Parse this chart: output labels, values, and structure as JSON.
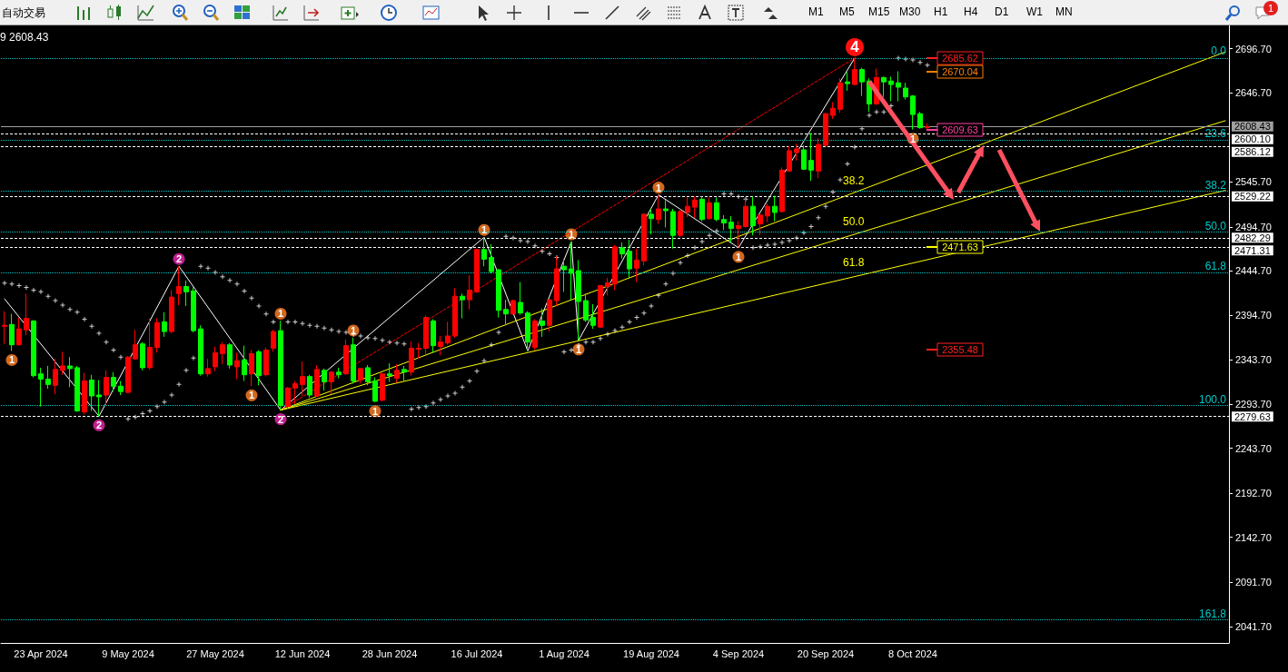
{
  "chart_data": {
    "type": "candlestick",
    "categories": [
      null,
      null,
      null,
      null,
      null,
      "23 Apr 2024",
      null,
      null,
      null,
      null,
      null,
      null,
      null,
      null,
      null,
      null,
      null,
      "9 May 2024",
      null,
      null,
      null,
      null,
      null,
      null,
      null,
      null,
      null,
      null,
      null,
      "27 May 2024",
      null,
      null,
      null,
      null,
      null,
      null,
      null,
      null,
      null,
      null,
      null,
      "12 Jun 2024",
      null,
      null,
      null,
      null,
      null,
      null,
      null,
      null,
      null,
      null,
      null,
      "28 Jun 2024",
      null,
      null,
      null,
      null,
      null,
      null,
      null,
      null,
      null,
      null,
      null,
      "16 Jul 2024",
      null,
      null,
      null,
      null,
      null,
      null,
      null,
      null,
      null,
      null,
      null,
      "1 Aug 2024",
      null,
      null,
      null,
      null,
      null,
      null,
      null,
      null,
      null,
      null,
      null,
      "19 Aug 2024",
      null,
      null,
      null,
      null,
      null,
      null,
      null,
      null,
      null,
      null,
      null,
      "4 Sep 2024",
      null,
      null,
      null,
      null,
      null,
      null,
      null,
      null,
      null,
      null,
      null,
      "20 Sep 2024",
      null,
      null,
      null,
      null,
      null,
      null,
      null,
      null,
      null,
      null,
      null,
      "8 Oct 2024",
      null,
      null,
      null,
      null,
      null,
      null,
      null,
      null,
      null,
      null,
      null,
      null,
      null,
      null,
      null,
      null,
      null,
      null,
      null,
      null,
      null,
      null,
      null,
      null,
      null,
      null,
      null,
      null,
      null,
      null,
      null,
      null,
      null,
      null,
      null,
      null,
      null,
      null,
      null,
      null,
      null,
      null,
      null
    ],
    "ohlc": [
      [
        2382,
        2399,
        2362,
        2383
      ],
      [
        2384,
        2396,
        2354,
        2361
      ],
      [
        2361,
        2392,
        2360,
        2379
      ],
      [
        2378,
        2419,
        2372,
        2391
      ],
      [
        2388,
        2389,
        2324,
        2326
      ],
      [
        2328,
        2335,
        2291,
        2322
      ],
      [
        2322,
        2337,
        2311,
        2316
      ],
      [
        2315,
        2345,
        2305,
        2333
      ],
      [
        2332,
        2353,
        2327,
        2337
      ],
      [
        2337,
        2347,
        2313,
        2334
      ],
      [
        2335,
        2337,
        2285,
        2286
      ],
      [
        2285,
        2329,
        2282,
        2320
      ],
      [
        2321,
        2327,
        2286,
        2303
      ],
      [
        2304,
        2321,
        2280,
        2302
      ],
      [
        2304,
        2332,
        2292,
        2324
      ],
      [
        2324,
        2330,
        2308,
        2314
      ],
      [
        2314,
        2320,
        2304,
        2308
      ],
      [
        2307,
        2348,
        2306,
        2347
      ],
      [
        2345,
        2378,
        2344,
        2361
      ],
      [
        2362,
        2364,
        2332,
        2335
      ],
      [
        2335,
        2391,
        2333,
        2358
      ],
      [
        2358,
        2391,
        2352,
        2386
      ],
      [
        2387,
        2398,
        2370,
        2376
      ],
      [
        2376,
        2423,
        2374,
        2415
      ],
      [
        2419,
        2450,
        2406,
        2427
      ],
      [
        2427,
        2434,
        2405,
        2421
      ],
      [
        2422,
        2426,
        2375,
        2377
      ],
      [
        2379,
        2383,
        2326,
        2328
      ],
      [
        2328,
        2345,
        2325,
        2334
      ],
      [
        2336,
        2359,
        2331,
        2352
      ],
      [
        2351,
        2364,
        2339,
        2361
      ],
      [
        2361,
        2363,
        2334,
        2338
      ],
      [
        2336,
        2352,
        2322,
        2343
      ],
      [
        2344,
        2360,
        2320,
        2327
      ],
      [
        2328,
        2355,
        2314,
        2351
      ],
      [
        2353,
        2355,
        2315,
        2326
      ],
      [
        2327,
        2358,
        2325,
        2355
      ],
      [
        2357,
        2378,
        2353,
        2376
      ],
      [
        2377,
        2388,
        2287,
        2292
      ],
      [
        2291,
        2313,
        2289,
        2312
      ],
      [
        2312,
        2320,
        2294,
        2317
      ],
      [
        2316,
        2342,
        2303,
        2325
      ],
      [
        2325,
        2327,
        2301,
        2304
      ],
      [
        2303,
        2338,
        2302,
        2333
      ],
      [
        2332,
        2334,
        2309,
        2319
      ],
      [
        2319,
        2331,
        2305,
        2330
      ],
      [
        2330,
        2335,
        2323,
        2327
      ],
      [
        2328,
        2367,
        2327,
        2360
      ],
      [
        2361,
        2369,
        2317,
        2320
      ],
      [
        2321,
        2335,
        2317,
        2334
      ],
      [
        2335,
        2338,
        2315,
        2319
      ],
      [
        2320,
        2324,
        2296,
        2297
      ],
      [
        2298,
        2329,
        2297,
        2328
      ],
      [
        2328,
        2340,
        2319,
        2326
      ],
      [
        2323,
        2339,
        2318,
        2332
      ],
      [
        2333,
        2337,
        2320,
        2330
      ],
      [
        2330,
        2365,
        2326,
        2357
      ],
      [
        2356,
        2363,
        2345,
        2357
      ],
      [
        2357,
        2394,
        2350,
        2392
      ],
      [
        2388,
        2390,
        2352,
        2360
      ],
      [
        2359,
        2371,
        2349,
        2364
      ],
      [
        2363,
        2387,
        2361,
        2371
      ],
      [
        2371,
        2425,
        2369,
        2416
      ],
      [
        2416,
        2419,
        2391,
        2412
      ],
      [
        2412,
        2440,
        2401,
        2423
      ],
      [
        2421,
        2470,
        2420,
        2469
      ],
      [
        2469,
        2483,
        2450,
        2458
      ],
      [
        2460,
        2475,
        2442,
        2444
      ],
      [
        2446,
        2447,
        2392,
        2400
      ],
      [
        2401,
        2412,
        2383,
        2396
      ],
      [
        2396,
        2412,
        2395,
        2411
      ],
      [
        2409,
        2432,
        2395,
        2397
      ],
      [
        2397,
        2399,
        2354,
        2364
      ],
      [
        2358,
        2390,
        2355,
        2388
      ],
      [
        2388,
        2402,
        2370,
        2383
      ],
      [
        2383,
        2413,
        2376,
        2412
      ],
      [
        2411,
        2461,
        2405,
        2447
      ],
      [
        2450,
        2458,
        2421,
        2446
      ],
      [
        2447,
        2478,
        2412,
        2442
      ],
      [
        2445,
        2457,
        2366,
        2410
      ],
      [
        2411,
        2419,
        2387,
        2389
      ],
      [
        2392,
        2407,
        2379,
        2383
      ],
      [
        2381,
        2429,
        2380,
        2428
      ],
      [
        2427,
        2437,
        2417,
        2431
      ],
      [
        2430,
        2474,
        2423,
        2472
      ],
      [
        2471,
        2477,
        2459,
        2464
      ],
      [
        2467,
        2480,
        2437,
        2447
      ],
      [
        2448,
        2470,
        2432,
        2457
      ],
      [
        2456,
        2510,
        2451,
        2509
      ],
      [
        2509,
        2515,
        2486,
        2504
      ],
      [
        2503,
        2531,
        2498,
        2515
      ],
      [
        2515,
        2525,
        2494,
        2513
      ],
      [
        2512,
        2515,
        2470,
        2485
      ],
      [
        2485,
        2515,
        2483,
        2512
      ],
      [
        2511,
        2528,
        2506,
        2518
      ],
      [
        2517,
        2529,
        2505,
        2525
      ],
      [
        2526,
        2529,
        2501,
        2503
      ],
      [
        2504,
        2528,
        2503,
        2522
      ],
      [
        2522,
        2528,
        2501,
        2503
      ],
      [
        2503,
        2508,
        2491,
        2499
      ],
      [
        2500,
        2507,
        2477,
        2493
      ],
      [
        2493,
        2501,
        2471,
        2496
      ],
      [
        2495,
        2526,
        2494,
        2518
      ],
      [
        2518,
        2529,
        2485,
        2496
      ],
      [
        2498,
        2510,
        2485,
        2508
      ],
      [
        2507,
        2521,
        2500,
        2518
      ],
      [
        2518,
        2530,
        2501,
        2511
      ],
      [
        2512,
        2562,
        2511,
        2559
      ],
      [
        2558,
        2586,
        2557,
        2581
      ],
      [
        2579,
        2589,
        2570,
        2583
      ],
      [
        2582,
        2587,
        2559,
        2560
      ],
      [
        2570,
        2601,
        2547,
        2559
      ],
      [
        2558,
        2595,
        2550,
        2588
      ],
      [
        2587,
        2624,
        2586,
        2623
      ],
      [
        2621,
        2636,
        2617,
        2629
      ],
      [
        2628,
        2663,
        2624,
        2658
      ],
      [
        2659,
        2670,
        2649,
        2657
      ],
      [
        2656,
        2686,
        2655,
        2673
      ],
      [
        2673,
        2675,
        2643,
        2659
      ],
      [
        2660,
        2663,
        2625,
        2634
      ],
      [
        2634,
        2674,
        2633,
        2664
      ],
      [
        2664,
        2665,
        2642,
        2659
      ],
      [
        2660,
        2665,
        2637,
        2656
      ],
      [
        2658,
        2671,
        2637,
        2653
      ],
      [
        2652,
        2658,
        2639,
        2642
      ],
      [
        2643,
        2644,
        2605,
        2622
      ],
      [
        2623,
        2625,
        2606,
        2607
      ],
      [
        2607,
        2612,
        2606,
        2608
      ],
      null,
      null,
      null,
      null,
      null,
      null,
      null,
      null,
      null,
      null,
      null,
      null,
      null,
      null,
      null,
      null,
      null,
      null,
      null,
      null,
      null,
      null,
      null,
      null,
      null,
      null,
      null,
      null,
      null,
      null,
      null,
      null,
      null,
      null,
      null,
      null,
      null,
      null,
      null,
      null,
      null
    ],
    "colors": [
      "#ff0000",
      "#00ff00",
      "#ff0000",
      "#ff0000",
      "#00ff00",
      "#00ff00",
      "#00ff00",
      "#ff0000",
      "#ff0000",
      "#00ff00",
      "#00ff00",
      "#ff0000",
      "#00ff00",
      "#00ff00",
      "#ff0000",
      "#00ff00",
      "#00ff00",
      "#ff0000",
      "#ff0000",
      "#00ff00",
      "#ff0000",
      "#ff0000",
      "#00ff00",
      "#ff0000",
      "#ff0000",
      "#00ff00",
      "#00ff00",
      "#00ff00",
      "#ff0000",
      "#ff0000",
      "#ff0000",
      "#00ff00",
      "#ff0000",
      "#00ff00",
      "#ff0000",
      "#00ff00",
      "#ff0000",
      "#ff0000",
      "#00ff00",
      "#ff0000",
      "#ff0000",
      "#ff0000",
      "#00ff00",
      "#ff0000",
      "#00ff00",
      "#ff0000",
      "#00ff00",
      "#ff0000",
      "#00ff00",
      "#ff0000",
      "#00ff00",
      "#00ff00",
      "#ff0000",
      "#00ff00",
      "#ff0000",
      "#00ff00",
      "#ff0000",
      "#ff0000",
      "#ff0000",
      "#00ff00",
      "#ff0000",
      "#ff0000",
      "#ff0000",
      "#00ff00",
      "#ff0000",
      "#ff0000",
      "#00ff00",
      "#00ff00",
      "#00ff00",
      "#00ff00",
      "#ff0000",
      "#00ff00",
      "#00ff00",
      "#ff0000",
      "#00ff00",
      "#ff0000",
      "#ff0000",
      "#00ff00",
      "#00ff00",
      "#00ff00",
      "#00ff00",
      "#00ff00",
      "#ff0000",
      "#ff0000",
      "#ff0000",
      "#00ff00",
      "#00ff00",
      "#ff0000",
      "#ff0000",
      "#00ff00",
      "#ff0000",
      "#00ff00",
      "#00ff00",
      "#ff0000",
      "#ff0000",
      "#ff0000",
      "#00ff00",
      "#ff0000",
      "#00ff00",
      "#00ff00",
      "#00ff00",
      "#ff0000",
      "#ff0000",
      "#00ff00",
      "#ff0000",
      "#ff0000",
      "#00ff00",
      "#ff0000",
      "#ff0000",
      "#ff0000",
      "#00ff00",
      "#00ff00",
      "#ff0000",
      "#ff0000",
      "#ff0000",
      "#ff0000",
      "#00ff00",
      "#ff0000",
      "#00ff00",
      "#00ff00",
      "#ff0000",
      "#00ff00",
      "#00ff00",
      "#00ff00",
      "#00ff00",
      "#00ff00",
      "#00ff00",
      "#ff0000",
      null,
      null,
      null,
      null,
      null,
      null,
      null,
      null,
      null,
      null,
      null,
      null,
      null,
      null,
      null,
      null,
      null,
      null,
      null,
      null,
      null,
      null,
      null,
      null,
      null,
      null,
      null,
      null,
      null,
      null,
      null,
      null,
      null,
      null,
      null,
      null,
      null,
      null,
      null,
      null,
      null
    ],
    "ylim": [
      2023,
      2723
    ],
    "yticks": [
      {
        "value": 2041.7,
        "label": "2041.70"
      },
      {
        "value": 2091.7,
        "label": "2091.70"
      },
      {
        "value": 2142.7,
        "label": "2142.70"
      },
      {
        "value": 2192.7,
        "label": "2192.70"
      },
      {
        "value": 2243.7,
        "label": "2243.70"
      },
      {
        "value": 2293.7,
        "label": "2293.70"
      },
      {
        "value": 2343.7,
        "label": "2343.70"
      },
      {
        "value": 2394.7,
        "label": "2394.70"
      },
      {
        "value": 2444.7,
        "label": "2444.70"
      },
      {
        "value": 2494.7,
        "label": "2494.70"
      },
      {
        "value": 2545.7,
        "label": "2545.70"
      },
      {
        "value": 2646.7,
        "label": "2646.70"
      },
      {
        "value": 2696.7,
        "label": "2696.70"
      }
    ],
    "series": [
      {
        "type": "line",
        "color": "#ffffff",
        "values": [
          2413,
          null,
          null,
          null,
          null,
          null,
          null,
          null,
          null,
          null,
          null,
          null,
          null,
          2280,
          null,
          null,
          null,
          null,
          null,
          null,
          null,
          null,
          null,
          null,
          2450,
          null,
          null,
          null,
          null,
          null,
          null,
          null,
          null,
          null,
          null,
          null,
          null,
          null,
          2287,
          null,
          null,
          null,
          null,
          null,
          null,
          null,
          null,
          null,
          null,
          null,
          null,
          null,
          null,
          null,
          null,
          null,
          null,
          null,
          null,
          null,
          null,
          null,
          null,
          null,
          null,
          null,
          2483,
          null,
          null,
          null,
          null,
          null,
          2354,
          null,
          null,
          null,
          null,
          null,
          2478,
          2366,
          null,
          null,
          null,
          null,
          null,
          null,
          null,
          null,
          null,
          null,
          2531,
          null,
          null,
          null,
          null,
          null,
          null,
          null,
          null,
          null,
          null,
          2471,
          null,
          null,
          null,
          null,
          null,
          null,
          null,
          null,
          null,
          null,
          null,
          null,
          null,
          null,
          null,
          2686,
          null,
          null,
          null,
          null,
          null,
          null,
          null,
          null,
          null,
          null,
          null,
          null,
          null,
          null,
          null,
          null,
          null,
          null,
          null,
          null,
          null,
          null,
          null,
          null,
          null,
          null,
          null,
          null,
          null,
          null,
          null,
          null,
          null,
          null,
          null,
          null,
          null,
          null,
          null,
          null,
          null,
          null,
          null,
          null,
          null,
          null,
          null,
          null,
          null,
          null,
          null
        ]
      },
      {
        "type": "line",
        "color": "#ff0000",
        "line_style": "dashed",
        "values": [
          null,
          null,
          null,
          null,
          null,
          null,
          null,
          null,
          null,
          null,
          null,
          null,
          null,
          null,
          null,
          null,
          null,
          null,
          null,
          null,
          null,
          null,
          null,
          null,
          null,
          null,
          null,
          null,
          null,
          null,
          null,
          null,
          null,
          null,
          null,
          null,
          null,
          null,
          2287,
          null,
          null,
          null,
          null,
          null,
          null,
          null,
          null,
          null,
          null,
          null,
          null,
          null,
          null,
          null,
          null,
          null,
          null,
          null,
          null,
          null,
          null,
          null,
          null,
          null,
          null,
          null,
          null,
          null,
          null,
          null,
          null,
          null,
          null,
          null,
          null,
          null,
          null,
          null,
          null,
          null,
          null,
          null,
          null,
          null,
          null,
          null,
          null,
          null,
          null,
          null,
          null,
          null,
          null,
          null,
          null,
          null,
          null,
          null,
          null,
          null,
          null,
          null,
          null,
          null,
          null,
          null,
          null,
          null,
          null,
          null,
          null,
          null,
          null,
          null,
          null,
          null,
          null,
          2686,
          null,
          null,
          null,
          null,
          null,
          null,
          null,
          null,
          null,
          null,
          null,
          null,
          null,
          null,
          null,
          null,
          null,
          null,
          null,
          null,
          null,
          null,
          null,
          null,
          null,
          null,
          null,
          null,
          null,
          null,
          null,
          null,
          null,
          null,
          null,
          null,
          null,
          null,
          null,
          null,
          null,
          null,
          null,
          null,
          null,
          null,
          null,
          null,
          null,
          null,
          null
        ]
      },
      {
        "type": "line",
        "color": "#ffff00",
        "values": [
          null,
          null,
          null,
          null,
          null,
          null,
          null,
          null,
          null,
          null,
          null,
          null,
          null,
          null,
          null,
          null,
          null,
          null,
          null,
          null,
          null,
          null,
          null,
          null,
          null,
          null,
          null,
          null,
          null,
          null,
          null,
          null,
          null,
          null,
          null,
          null,
          null,
          null,
          2287,
          null,
          null,
          null,
          null,
          null,
          null,
          null,
          null,
          null,
          null,
          null,
          null,
          null,
          null,
          null,
          null,
          null,
          null,
          null,
          null,
          null,
          null,
          null,
          null,
          null,
          null,
          null,
          null,
          null,
          null,
          null,
          null,
          null,
          null,
          null,
          null,
          null,
          null,
          null,
          null,
          null,
          null,
          null,
          null,
          null,
          null,
          null,
          null,
          null,
          null,
          null,
          null,
          null,
          null,
          null,
          null,
          null,
          null,
          null,
          null,
          null,
          null,
          null,
          null,
          null,
          null,
          null,
          null,
          null,
          null,
          null,
          null,
          null,
          null,
          null,
          null,
          null,
          null,
          null,
          null,
          null,
          null,
          null,
          null,
          null,
          null,
          null,
          null,
          null,
          null,
          null,
          null,
          null,
          null,
          null,
          null,
          null,
          null,
          null,
          null,
          null,
          null,
          null,
          null,
          null,
          null,
          null,
          null,
          null,
          null,
          null,
          null,
          null,
          null,
          null,
          null,
          null,
          null,
          null,
          null,
          null,
          null,
          null,
          null,
          null,
          null,
          null,
          null,
          null,
          2693
        ]
      },
      {
        "type": "line",
        "color": "#ffff00",
        "values": [
          null,
          null,
          null,
          null,
          null,
          null,
          null,
          null,
          null,
          null,
          null,
          null,
          null,
          null,
          null,
          null,
          null,
          null,
          null,
          null,
          null,
          null,
          null,
          null,
          null,
          null,
          null,
          null,
          null,
          null,
          null,
          null,
          null,
          null,
          null,
          null,
          null,
          null,
          2287,
          null,
          null,
          null,
          null,
          null,
          null,
          null,
          null,
          null,
          null,
          null,
          null,
          null,
          null,
          null,
          null,
          null,
          null,
          null,
          null,
          null,
          null,
          null,
          null,
          null,
          null,
          null,
          null,
          null,
          null,
          null,
          null,
          null,
          null,
          null,
          null,
          null,
          null,
          null,
          null,
          null,
          null,
          null,
          null,
          null,
          null,
          null,
          null,
          null,
          null,
          null,
          null,
          null,
          null,
          null,
          null,
          null,
          null,
          null,
          null,
          null,
          null,
          null,
          null,
          null,
          null,
          null,
          null,
          null,
          null,
          null,
          null,
          null,
          null,
          null,
          null,
          null,
          null,
          null,
          null,
          null,
          null,
          null,
          null,
          null,
          null,
          null,
          null,
          null,
          null,
          null,
          null,
          null,
          null,
          null,
          null,
          null,
          null,
          null,
          null,
          null,
          null,
          null,
          null,
          null,
          null,
          null,
          null,
          null,
          null,
          null,
          null,
          null,
          null,
          null,
          null,
          null,
          null,
          null,
          null,
          null,
          null,
          null,
          null,
          null,
          null,
          null,
          null,
          null,
          2615
        ]
      },
      {
        "type": "line",
        "color": "#ffff00",
        "values": [
          null,
          null,
          null,
          null,
          null,
          null,
          null,
          null,
          null,
          null,
          null,
          null,
          null,
          null,
          null,
          null,
          null,
          null,
          null,
          null,
          null,
          null,
          null,
          null,
          null,
          null,
          null,
          null,
          null,
          null,
          null,
          null,
          null,
          null,
          null,
          null,
          null,
          null,
          2287,
          null,
          null,
          null,
          null,
          null,
          null,
          null,
          null,
          null,
          null,
          null,
          null,
          null,
          null,
          null,
          null,
          null,
          null,
          null,
          null,
          null,
          null,
          null,
          null,
          null,
          null,
          null,
          null,
          null,
          null,
          null,
          null,
          null,
          null,
          null,
          null,
          null,
          null,
          null,
          null,
          null,
          null,
          null,
          null,
          null,
          null,
          null,
          null,
          null,
          null,
          null,
          null,
          null,
          null,
          null,
          null,
          null,
          null,
          null,
          null,
          null,
          null,
          null,
          null,
          null,
          null,
          null,
          null,
          null,
          null,
          null,
          null,
          null,
          null,
          null,
          null,
          null,
          null,
          null,
          null,
          null,
          null,
          null,
          null,
          null,
          null,
          null,
          null,
          null,
          null,
          null,
          null,
          null,
          null,
          null,
          null,
          null,
          null,
          null,
          null,
          null,
          null,
          null,
          null,
          null,
          null,
          null,
          null,
          null,
          null,
          null,
          null,
          null,
          null,
          null,
          null,
          null,
          null,
          null,
          null,
          null,
          null,
          null,
          null,
          null,
          null,
          null,
          null,
          null,
          2536
        ]
      },
      {
        "type": "scatter",
        "color": "#ffffff",
        "marker": "cross",
        "values": [
          2431,
          2430,
          2428,
          2426,
          2423,
          2421,
          2416,
          2411,
          2406,
          2401,
          2398,
          2390,
          2382,
          2374,
          2364,
          2355,
          2347,
          2277,
          2279,
          2283,
          2286,
          2291,
          2296,
          2304,
          2316,
          2332,
          2346,
          2450,
          2448,
          2443,
          2438,
          2434,
          2430,
          2422,
          2414,
          2405,
          2396,
          2387,
          null,
          2387,
          2387,
          2385,
          2383,
          2382,
          2380,
          2378,
          2376,
          2375,
          2373,
          2371,
          2369,
          2368,
          2366,
          2364,
          2363,
          2362,
          2288,
          2290,
          2291,
          2295,
          2299,
          2303,
          2306,
          2313,
          2320,
          2331,
          2343,
          2361,
          2375,
          2484,
          2482,
          2479,
          2478,
          2473,
          2467,
          2464,
          2460,
          2353,
          2355,
          2360,
          2364,
          2364,
          2368,
          2373,
          2377,
          2381,
          2387,
          2392,
          2397,
          2405,
          2417,
          2430,
          2442,
          2454,
          2462,
          2471,
          2478,
          2485,
          2490,
          2532,
          2532,
          2529,
          2526,
          2471,
          2472,
          2474,
          2475,
          2477,
          2479,
          2482,
          2488,
          2495,
          2505,
          2518,
          2534,
          2548,
          2566,
          2585,
          2606,
          2621,
          2625,
          2625,
          2632,
          2686,
          2685,
          2684,
          2681,
          2678,
          null,
          null,
          null,
          null,
          null,
          null,
          null,
          null,
          null,
          null,
          null,
          null,
          null,
          null,
          null,
          null,
          null,
          null,
          null,
          null,
          null,
          null,
          null,
          null,
          null,
          null,
          null,
          null,
          null,
          null,
          null,
          null,
          null,
          null,
          null,
          null,
          null,
          null,
          null,
          null,
          null
        ]
      }
    ],
    "ref_lines": [
      {
        "axis": "y",
        "value": 2686,
        "color": "#00c8c8",
        "line_style": "dotted"
      },
      {
        "axis": "y",
        "value": 2593,
        "color": "#00c8c8",
        "line_style": "dotted"
      },
      {
        "axis": "y",
        "value": 2535,
        "color": "#00c8c8",
        "line_style": "dotted"
      },
      {
        "axis": "y",
        "value": 2489,
        "color": "#00c8c8",
        "line_style": "dotted"
      },
      {
        "axis": "y",
        "value": 2443,
        "color": "#00c8c8",
        "line_style": "dotted"
      },
      {
        "axis": "y",
        "value": 2292,
        "color": "#00c8c8",
        "line_style": "dotted"
      },
      {
        "axis": "y",
        "value": 2049,
        "color": "#00c8c8",
        "line_style": "dotted"
      },
      {
        "axis": "y",
        "value": 2608.43,
        "label": "2608.43",
        "color": "#a0a0a0",
        "line_style": "solid"
      },
      {
        "axis": "y",
        "value": 2600.1,
        "label": "2600.10",
        "color": "#ffffff",
        "line_style": "dashed"
      },
      {
        "axis": "y",
        "value": 2586.12,
        "label": "2586.12",
        "color": "#ffffff",
        "line_style": "dashed"
      },
      {
        "axis": "y",
        "value": 2529.22,
        "label": "2529.22",
        "color": "#ffffff",
        "line_style": "dashed"
      },
      {
        "axis": "y",
        "value": 2482.29,
        "label": "2482.29",
        "color": "#ffffff",
        "line_style": "dashed"
      },
      {
        "axis": "y",
        "value": 2471.31,
        "label": "2471.31",
        "color": "#ffffff",
        "line_style": "dashed"
      },
      {
        "axis": "y",
        "value": 2279.63,
        "label": "2279.63",
        "color": "#ffffff",
        "line_style": "dashed"
      }
    ],
    "annotations": [
      "9 2608.43",
      "自动交易",
      "M1",
      "M5",
      "M15",
      "M30",
      "H1",
      "H4",
      "D1",
      "W1",
      "MN",
      "1",
      "38.2",
      "50.0",
      "61.8",
      "2685.62",
      "2670.04",
      "2609.63",
      "2471.63",
      "2355.48",
      "0.0",
      "23.6",
      "38.2",
      "50.0",
      "61.8",
      "100.0",
      "161.8",
      {
        "text": "2",
        "y": 2280
      },
      {
        "text": "2",
        "y": 2450
      },
      {
        "text": "2",
        "y": 2287
      },
      {
        "text": "1",
        "y": 2314
      },
      {
        "text": "1",
        "y": 2388
      },
      {
        "text": "1",
        "y": 2369
      },
      {
        "text": "1",
        "y": 2296
      },
      {
        "text": "1",
        "y": 2483
      },
      {
        "text": "1",
        "y": 2354
      },
      {
        "text": "1",
        "y": 2478
      },
      {
        "text": "1",
        "y": 2366
      },
      {
        "text": "1",
        "y": 2531
      },
      {
        "text": "1",
        "y": 2471
      },
      {
        "text": "4",
        "y": 2686
      },
      {
        "text": "1",
        "y": 2605
      }
    ]
  }
}
